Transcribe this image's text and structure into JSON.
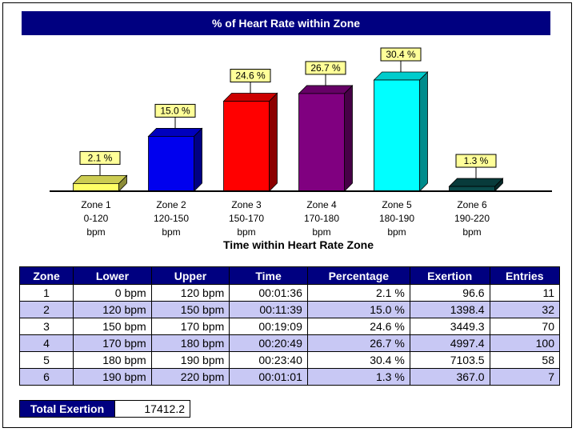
{
  "chart_data": {
    "type": "bar",
    "title": "% of Heart Rate within Zone",
    "xlabel": "Time within Heart Rate Zone",
    "ylabel": "",
    "categories": [
      [
        "Zone 1",
        "0-120",
        "bpm"
      ],
      [
        "Zone 2",
        "120-150",
        "bpm"
      ],
      [
        "Zone 3",
        "150-170",
        "bpm"
      ],
      [
        "Zone 4",
        "170-180",
        "bpm"
      ],
      [
        "Zone 5",
        "180-190",
        "bpm"
      ],
      [
        "Zone 6",
        "190-220",
        "bpm"
      ]
    ],
    "values": [
      2.1,
      15.0,
      24.6,
      26.7,
      30.4,
      1.3
    ],
    "data_labels": [
      "2.1 %",
      "15.0 %",
      "24.6 %",
      "26.7 %",
      "30.4 %",
      "1.3 %"
    ],
    "colors": [
      "#ffff66",
      "#0000ee",
      "#ff0000",
      "#800080",
      "#00ffff",
      "#0a4a4a"
    ],
    "ylim": [
      0,
      30.4
    ],
    "grid": false
  },
  "table": {
    "headers": [
      "Zone",
      "Lower",
      "Upper",
      "Time",
      "Percentage",
      "Exertion",
      "Entries"
    ],
    "rows": [
      [
        "1",
        "0 bpm",
        "120 bpm",
        "00:01:36",
        "2.1 %",
        "96.6",
        "11"
      ],
      [
        "2",
        "120 bpm",
        "150 bpm",
        "00:11:39",
        "15.0 %",
        "1398.4",
        "32"
      ],
      [
        "3",
        "150 bpm",
        "170 bpm",
        "00:19:09",
        "24.6 %",
        "3449.3",
        "70"
      ],
      [
        "4",
        "170 bpm",
        "180 bpm",
        "00:20:49",
        "26.7 %",
        "4997.4",
        "100"
      ],
      [
        "5",
        "180 bpm",
        "190 bpm",
        "00:23:40",
        "30.4 %",
        "7103.5",
        "58"
      ],
      [
        "6",
        "190 bpm",
        "220 bpm",
        "00:01:01",
        "1.3 %",
        "367.0",
        "7"
      ]
    ]
  },
  "total": {
    "label": "Total Exertion",
    "value": "17412.2"
  }
}
